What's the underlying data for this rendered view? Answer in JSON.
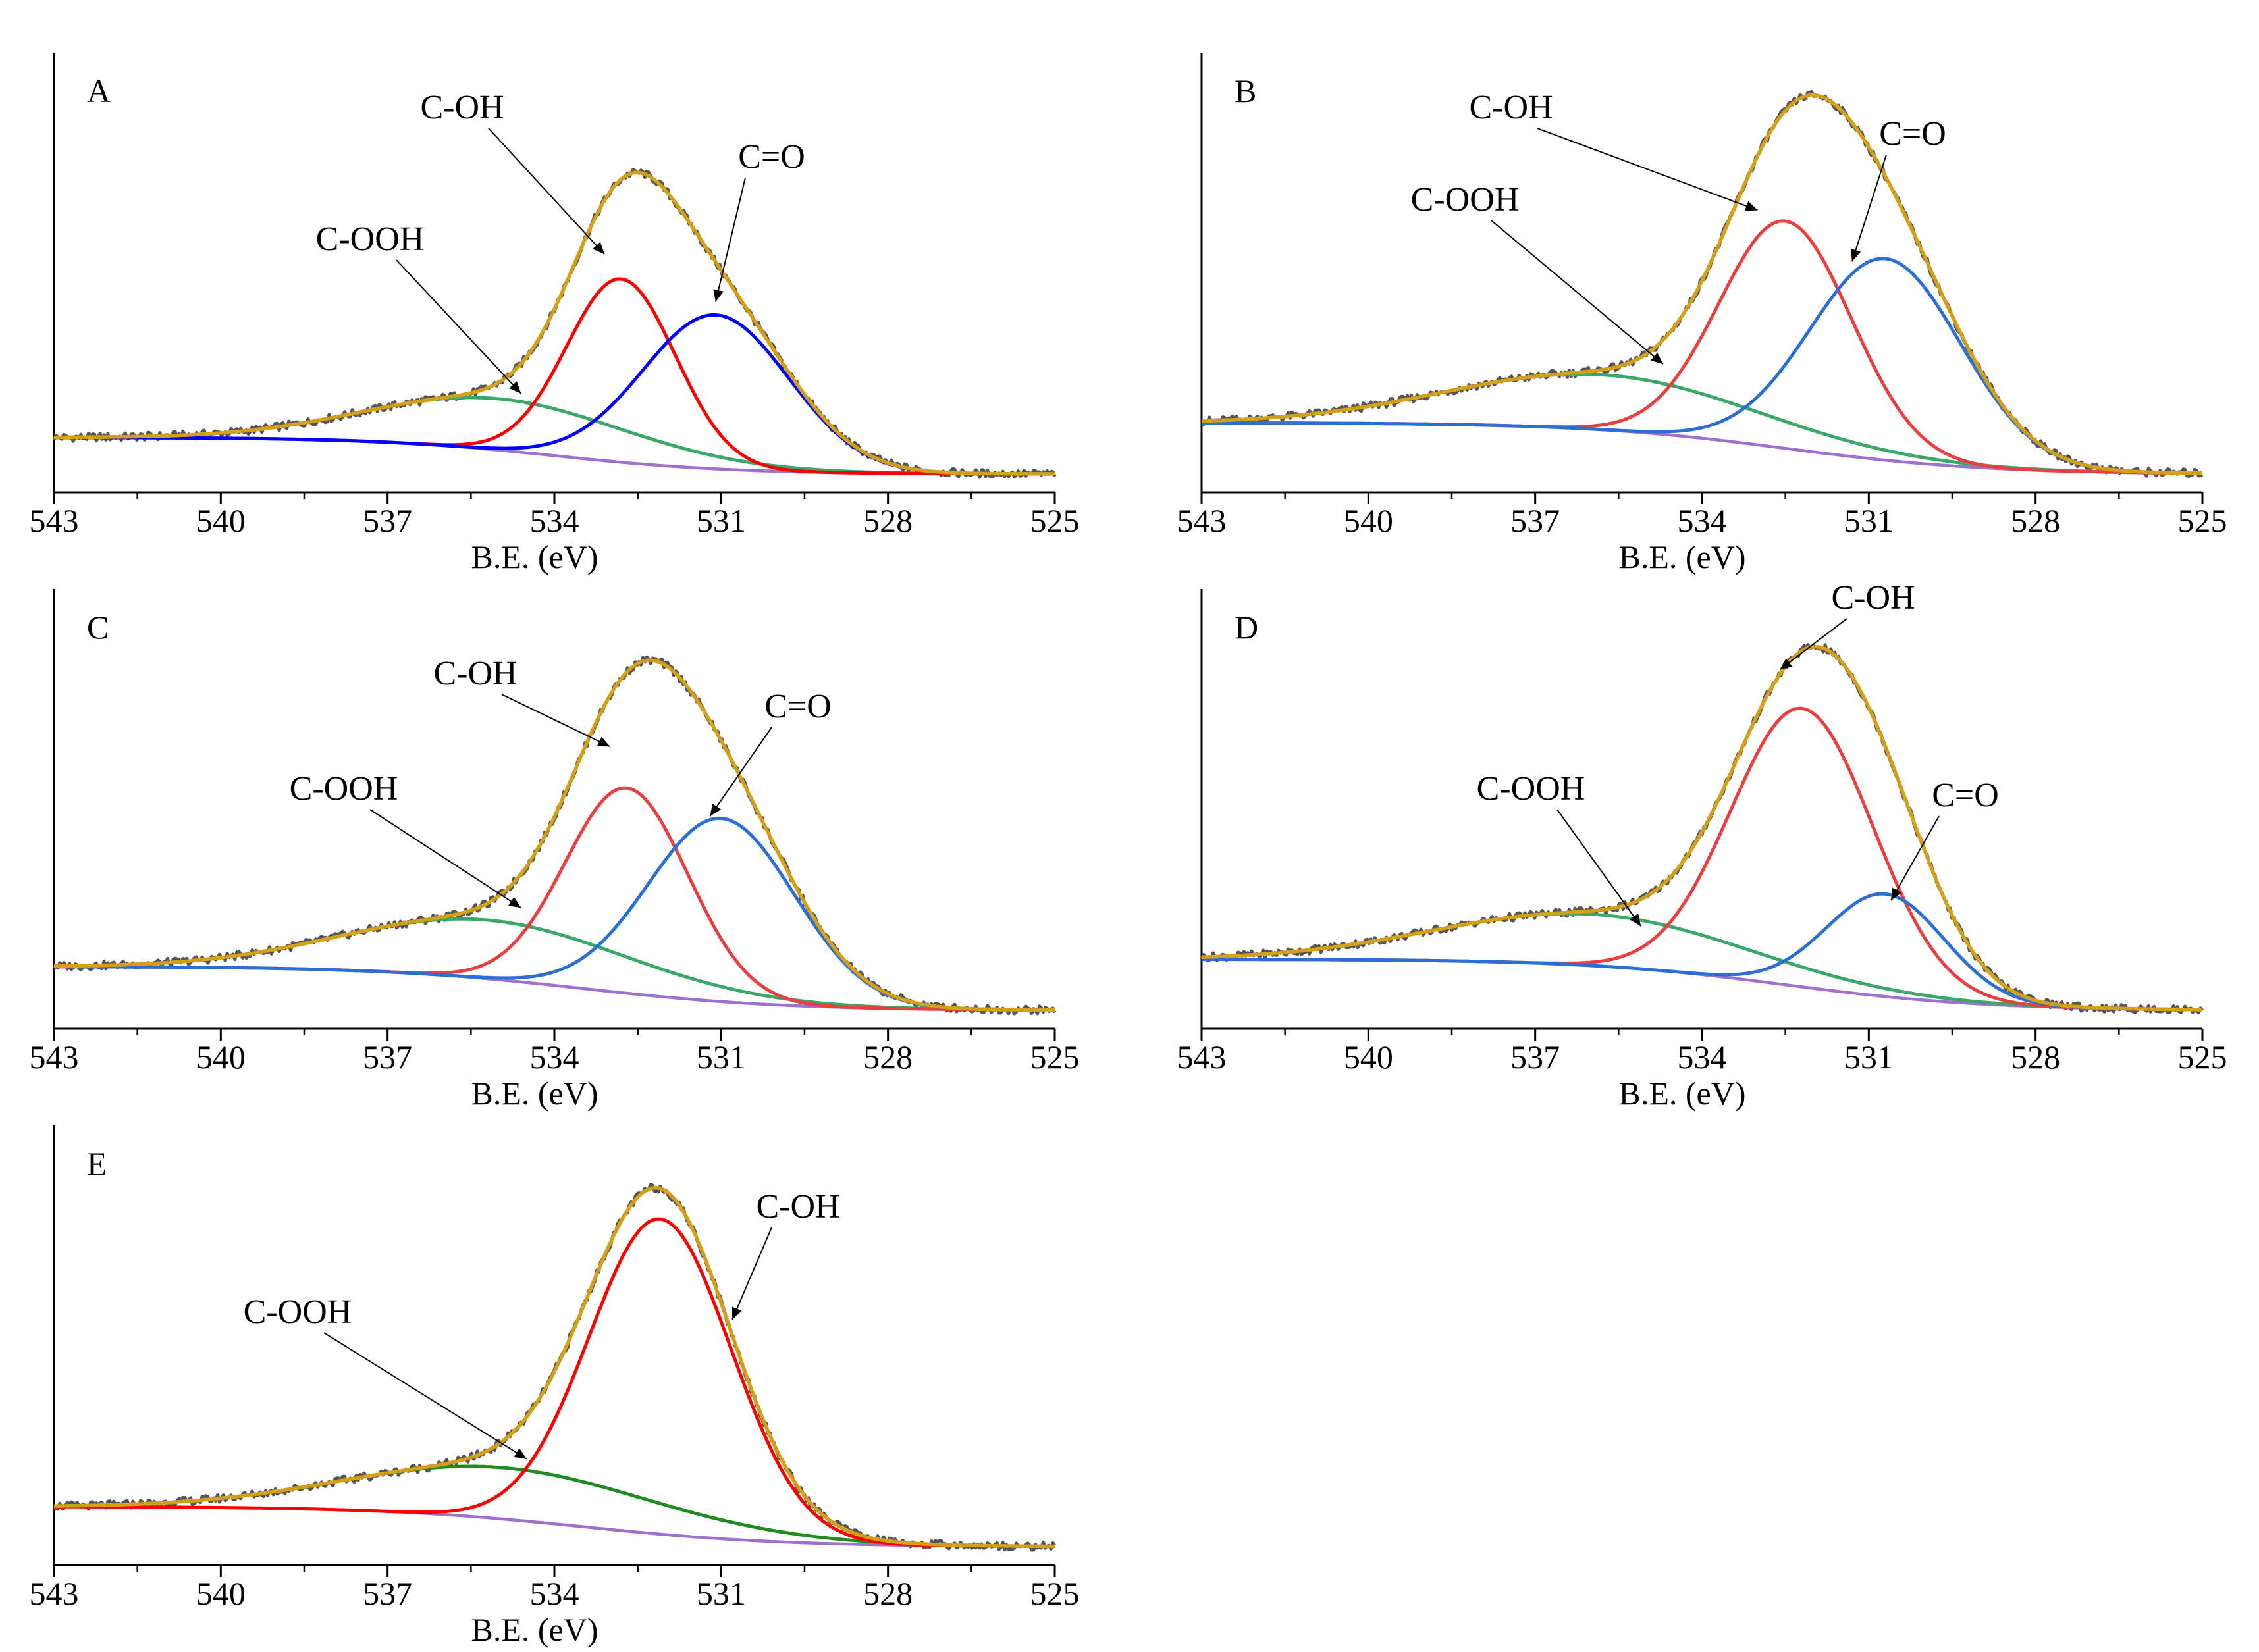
{
  "figure": {
    "x_axis_label": "B.E. (eV)",
    "x_range": [
      543,
      525
    ],
    "x_ticks": [
      543,
      540,
      537,
      534,
      531,
      528,
      525
    ],
    "colors": {
      "raw": "#555555",
      "envelope": "#d4a017",
      "baseline": "#a070d0",
      "cooh": "#3aa868",
      "coh": "#e03c3c",
      "co": "#2f6fd6"
    }
  },
  "chart_data": [
    {
      "type": "line",
      "panel": "A",
      "xlabel": "B.E. (eV)",
      "xlim": [
        543,
        525
      ],
      "ylim": [
        -0.05,
        1.15
      ],
      "baseline": {
        "high_be": 0.1,
        "low_be": 0.0,
        "step_center": 534,
        "step_width": 1.6
      },
      "series": [
        {
          "name": "C-OOH",
          "center": 535.0,
          "height": 0.14,
          "fwhm": 5.5,
          "color": "#3aa868"
        },
        {
          "name": "C-OH",
          "center": 532.8,
          "height": 0.5,
          "fwhm": 2.3,
          "color": "#ff0000"
        },
        {
          "name": "C=O",
          "center": 531.1,
          "height": 0.42,
          "fwhm": 3.1,
          "color": "#0000ff"
        }
      ],
      "annotations": [
        {
          "text": "C-OH",
          "arrow_to": [
            533.1,
            0.6
          ]
        },
        {
          "text": "C=O",
          "arrow_to": [
            531.1,
            0.47
          ]
        },
        {
          "text": "C-OOH",
          "arrow_to": [
            534.6,
            0.22
          ]
        }
      ]
    },
    {
      "type": "line",
      "panel": "B",
      "xlabel": "B.E. (eV)",
      "xlim": [
        543,
        525
      ],
      "ylim": [
        -0.05,
        1.15
      ],
      "baseline": {
        "high_be": 0.14,
        "low_be": 0.0,
        "step_center": 532.5,
        "step_width": 1.8
      },
      "series": [
        {
          "name": "C-OOH",
          "center": 535.8,
          "height": 0.15,
          "fwhm": 6.5,
          "color": "#3aa868"
        },
        {
          "name": "C-OH",
          "center": 532.5,
          "height": 0.62,
          "fwhm": 2.8,
          "color": "#e84040"
        },
        {
          "name": "C=O",
          "center": 530.7,
          "height": 0.55,
          "fwhm": 3.2,
          "color": "#2a6fd6"
        }
      ],
      "annotations": [
        {
          "text": "C-OH",
          "arrow_to": [
            533.0,
            0.72
          ]
        },
        {
          "text": "C=O",
          "arrow_to": [
            531.3,
            0.58
          ]
        },
        {
          "text": "C-OOH",
          "arrow_to": [
            534.7,
            0.3
          ]
        }
      ]
    },
    {
      "type": "line",
      "panel": "C",
      "xlabel": "B.E. (eV)",
      "xlim": [
        543,
        525
      ],
      "ylim": [
        -0.05,
        1.15
      ],
      "baseline": {
        "high_be": 0.12,
        "low_be": 0.0,
        "step_center": 533.5,
        "step_width": 1.8
      },
      "series": [
        {
          "name": "C-OOH",
          "center": 535.2,
          "height": 0.16,
          "fwhm": 6.0,
          "color": "#3aa868"
        },
        {
          "name": "C-OH",
          "center": 532.7,
          "height": 0.56,
          "fwhm": 2.6,
          "color": "#e84040"
        },
        {
          "name": "C=O",
          "center": 531.0,
          "height": 0.5,
          "fwhm": 3.1,
          "color": "#2a6fd6"
        }
      ],
      "annotations": [
        {
          "text": "C-OH",
          "arrow_to": [
            533.0,
            0.72
          ]
        },
        {
          "text": "C=O",
          "arrow_to": [
            531.2,
            0.53
          ]
        },
        {
          "text": "C-OOH",
          "arrow_to": [
            534.6,
            0.28
          ]
        }
      ]
    },
    {
      "type": "line",
      "panel": "D",
      "xlabel": "B.E. (eV)",
      "xlim": [
        543,
        525
      ],
      "ylim": [
        -0.05,
        1.15
      ],
      "baseline": {
        "high_be": 0.14,
        "low_be": 0.0,
        "step_center": 532.5,
        "step_width": 1.8
      },
      "series": [
        {
          "name": "C-OOH",
          "center": 536.0,
          "height": 0.14,
          "fwhm": 6.5,
          "color": "#3aa868"
        },
        {
          "name": "C-OH",
          "center": 532.2,
          "height": 0.76,
          "fwhm": 3.0,
          "color": "#e84040"
        },
        {
          "name": "C=O",
          "center": 530.7,
          "height": 0.28,
          "fwhm": 2.5,
          "color": "#2a6fd6"
        }
      ],
      "annotations": [
        {
          "text": "C-OH",
          "arrow_to": [
            532.6,
            0.93
          ]
        },
        {
          "text": "C=O",
          "arrow_to": [
            530.6,
            0.3
          ]
        },
        {
          "text": "C-OOH",
          "arrow_to": [
            535.1,
            0.23
          ]
        }
      ]
    },
    {
      "type": "line",
      "panel": "E",
      "xlabel": "B.E. (eV)",
      "xlim": [
        543,
        525
      ],
      "ylim": [
        -0.05,
        1.15
      ],
      "baseline": {
        "high_be": 0.11,
        "low_be": 0.0,
        "step_center": 533.5,
        "step_width": 1.8
      },
      "series": [
        {
          "name": "C-OOH",
          "center": 534.9,
          "height": 0.14,
          "fwhm": 6.5,
          "color": "#1e8c1e"
        },
        {
          "name": "C-OH",
          "center": 532.1,
          "height": 0.86,
          "fwhm": 3.0,
          "color": "#ff0000"
        }
      ],
      "annotations": [
        {
          "text": "C-OH",
          "arrow_to": [
            530.8,
            0.62
          ]
        },
        {
          "text": "C-OOH",
          "arrow_to": [
            534.5,
            0.24
          ]
        }
      ]
    }
  ]
}
